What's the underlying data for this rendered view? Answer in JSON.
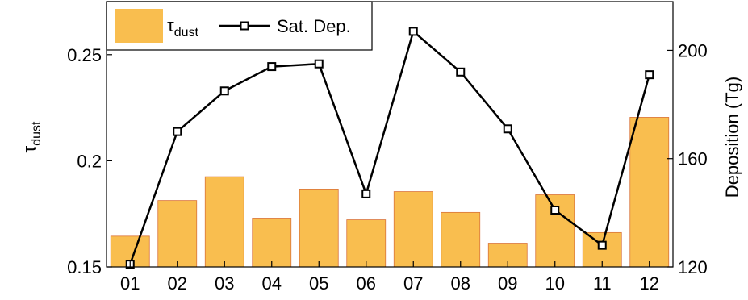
{
  "chart_data": {
    "type": "bar",
    "categories": [
      "01",
      "02",
      "03",
      "04",
      "05",
      "06",
      "07",
      "08",
      "09",
      "10",
      "11",
      "12"
    ],
    "series": [
      {
        "name": "τdust",
        "kind": "bar",
        "axis": "left",
        "color": "#F9BE4F",
        "edge_color": "#D9733A",
        "values": [
          0.1645,
          0.1813,
          0.1925,
          0.173,
          0.1867,
          0.1722,
          0.1855,
          0.1757,
          0.1612,
          0.184,
          0.1662,
          0.2205
        ]
      },
      {
        "name": "Sat. Dep.",
        "kind": "line",
        "axis": "right",
        "marker": "square",
        "color": "#000000",
        "values": [
          121,
          170,
          185,
          194,
          195,
          147,
          207,
          192,
          171,
          141,
          128,
          191
        ]
      }
    ],
    "left_axis": {
      "label_main": "τ",
      "label_sub": "dust",
      "ylim": [
        0.15,
        0.275
      ],
      "ticks": [
        0.15,
        0.2,
        0.25
      ],
      "tick_labels": [
        "0.15",
        "0.2",
        "0.25"
      ]
    },
    "right_axis": {
      "label": "Deposition (Tg)",
      "ylim": [
        120,
        218
      ],
      "ticks": [
        120,
        160,
        200
      ],
      "tick_labels": [
        "120",
        "160",
        "200"
      ]
    },
    "grid": false,
    "legend": {
      "placement": "top-left",
      "items": [
        {
          "main": "τ",
          "sub": "dust"
        },
        {
          "main": "Sat. Dep."
        }
      ]
    }
  }
}
